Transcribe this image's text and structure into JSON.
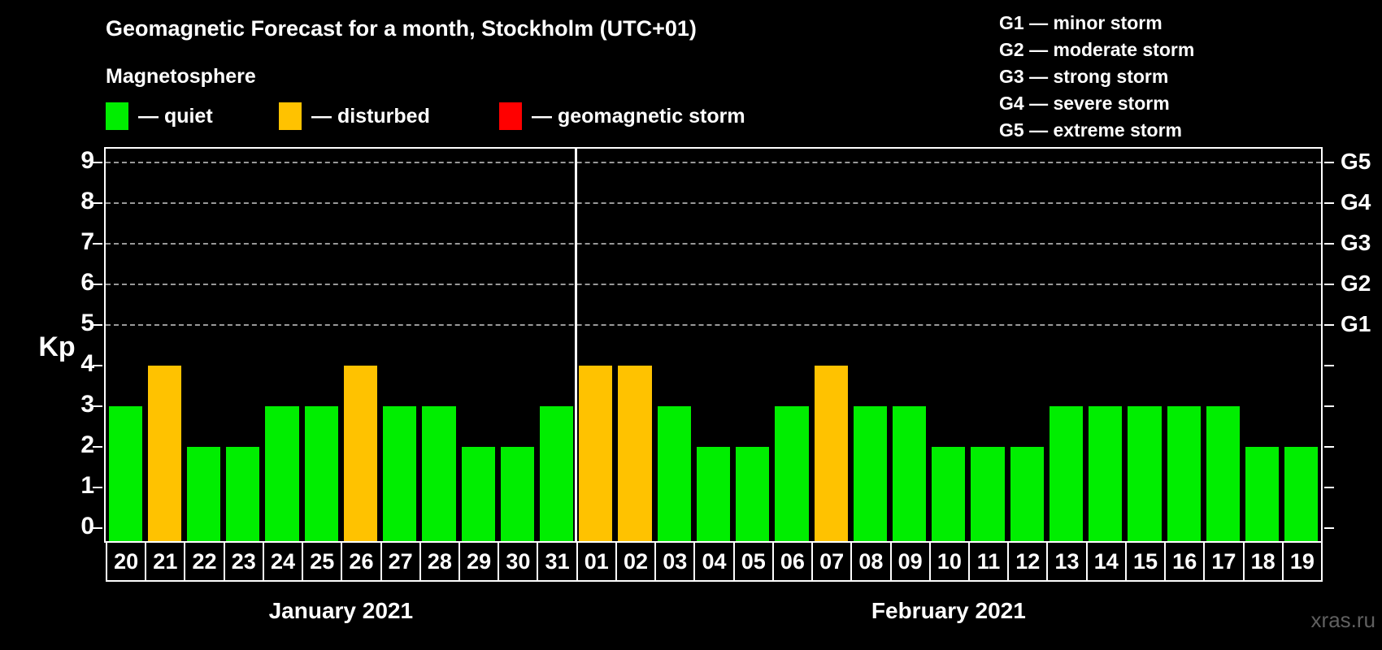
{
  "title": "Geomagnetic Forecast for a month, Stockholm (UTC+01)",
  "subtitle": "Magnetosphere",
  "watermark": "xras.ru",
  "legend": {
    "colors": {
      "quiet": "#00EE00",
      "disturbed": "#FFC200",
      "storm": "#FF0000"
    },
    "items": [
      {
        "status": "quiet",
        "label": "— quiet"
      },
      {
        "status": "disturbed",
        "label": "— disturbed"
      },
      {
        "status": "storm",
        "label": "— geomagnetic storm"
      }
    ]
  },
  "storm_scale_legend": [
    {
      "text": "G1 — minor storm"
    },
    {
      "text": "G2 — moderate storm"
    },
    {
      "text": "G3 — strong storm"
    },
    {
      "text": "G4 — severe storm"
    },
    {
      "text": "G5 — extreme storm"
    }
  ],
  "chart_data": {
    "type": "bar",
    "ylabel": "Kp",
    "ylim": [
      0,
      9.3
    ],
    "yticks": [
      0,
      1,
      2,
      3,
      4,
      5,
      6,
      7,
      8,
      9
    ],
    "gridlines_at": [
      5,
      6,
      7,
      8,
      9
    ],
    "grid_style": "horizontal dashed",
    "legend_position": "top",
    "right_axis_labels": [
      {
        "kp": 5,
        "label": "G1"
      },
      {
        "kp": 6,
        "label": "G2"
      },
      {
        "kp": 7,
        "label": "G3"
      },
      {
        "kp": 8,
        "label": "G4"
      },
      {
        "kp": 9,
        "label": "G5"
      }
    ],
    "months": [
      {
        "label": "January 2021",
        "days": [
          {
            "day": "20",
            "kp": 3,
            "status": "quiet"
          },
          {
            "day": "21",
            "kp": 4,
            "status": "disturbed"
          },
          {
            "day": "22",
            "kp": 2,
            "status": "quiet"
          },
          {
            "day": "23",
            "kp": 2,
            "status": "quiet"
          },
          {
            "day": "24",
            "kp": 3,
            "status": "quiet"
          },
          {
            "day": "25",
            "kp": 3,
            "status": "quiet"
          },
          {
            "day": "26",
            "kp": 4,
            "status": "disturbed"
          },
          {
            "day": "27",
            "kp": 3,
            "status": "quiet"
          },
          {
            "day": "28",
            "kp": 3,
            "status": "quiet"
          },
          {
            "day": "29",
            "kp": 2,
            "status": "quiet"
          },
          {
            "day": "30",
            "kp": 2,
            "status": "quiet"
          },
          {
            "day": "31",
            "kp": 3,
            "status": "quiet"
          }
        ]
      },
      {
        "label": "February 2021",
        "days": [
          {
            "day": "01",
            "kp": 4,
            "status": "disturbed"
          },
          {
            "day": "02",
            "kp": 4,
            "status": "disturbed"
          },
          {
            "day": "03",
            "kp": 3,
            "status": "quiet"
          },
          {
            "day": "04",
            "kp": 2,
            "status": "quiet"
          },
          {
            "day": "05",
            "kp": 2,
            "status": "quiet"
          },
          {
            "day": "06",
            "kp": 3,
            "status": "quiet"
          },
          {
            "day": "07",
            "kp": 4,
            "status": "disturbed"
          },
          {
            "day": "08",
            "kp": 3,
            "status": "quiet"
          },
          {
            "day": "09",
            "kp": 3,
            "status": "quiet"
          },
          {
            "day": "10",
            "kp": 2,
            "status": "quiet"
          },
          {
            "day": "11",
            "kp": 2,
            "status": "quiet"
          },
          {
            "day": "12",
            "kp": 2,
            "status": "quiet"
          },
          {
            "day": "13",
            "kp": 3,
            "status": "quiet"
          },
          {
            "day": "14",
            "kp": 3,
            "status": "quiet"
          },
          {
            "day": "15",
            "kp": 3,
            "status": "quiet"
          },
          {
            "day": "16",
            "kp": 3,
            "status": "quiet"
          },
          {
            "day": "17",
            "kp": 3,
            "status": "quiet"
          },
          {
            "day": "18",
            "kp": 2,
            "status": "quiet"
          },
          {
            "day": "19",
            "kp": 2,
            "status": "quiet"
          }
        ]
      }
    ]
  }
}
